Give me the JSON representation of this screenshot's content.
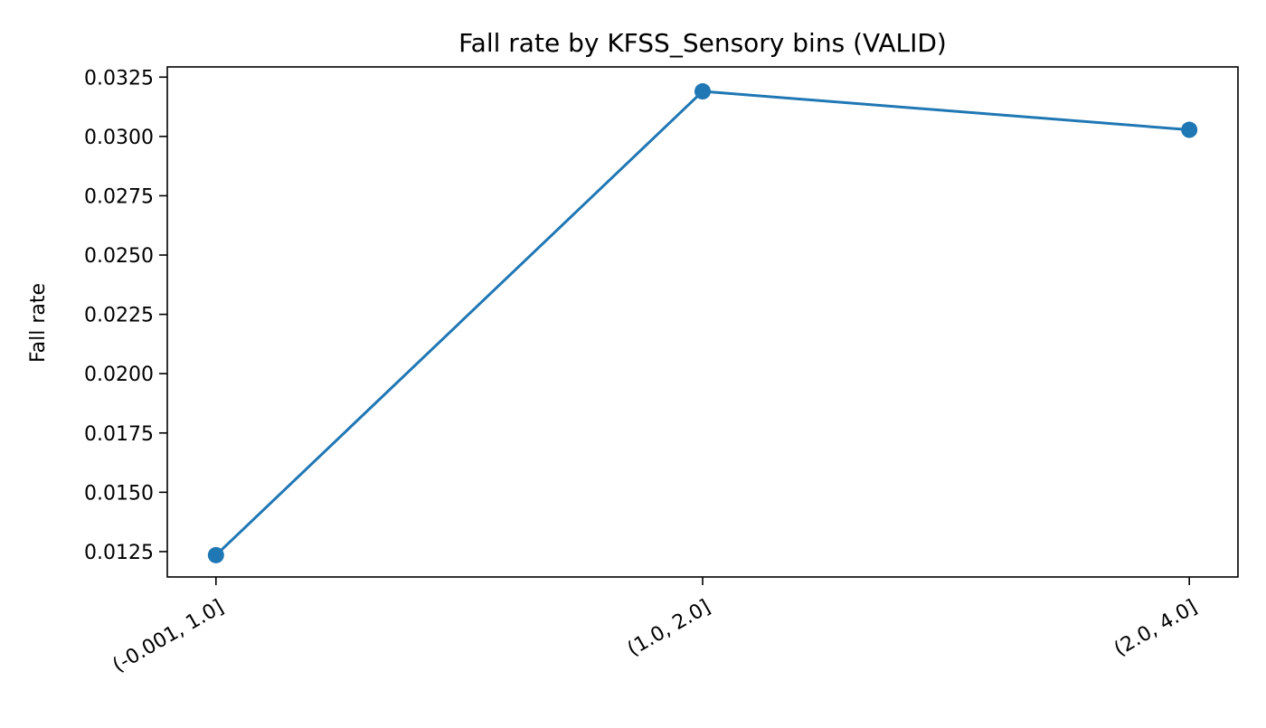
{
  "chart_data": {
    "type": "line",
    "title": "Fall rate by KFSS_Sensory bins (VALID)",
    "xlabel": "",
    "ylabel": "Fall rate",
    "categories": [
      "(-0.001, 1.0]",
      "(1.0, 2.0]",
      "(2.0, 4.0]"
    ],
    "series": [
      {
        "values": [
          0.01235,
          0.0319,
          0.03028
        ]
      }
    ],
    "ylim": [
      0.01143,
      0.03293
    ],
    "yticks": [
      0.0125,
      0.015,
      0.0175,
      0.02,
      0.0225,
      0.025,
      0.0275,
      0.03,
      0.0325
    ],
    "ytick_labels": [
      "0.0125",
      "0.0150",
      "0.0175",
      "0.0200",
      "0.0225",
      "0.0250",
      "0.0275",
      "0.0300",
      "0.0325"
    ],
    "grid": false,
    "marker": "circle",
    "colors": {
      "series": "#1f77b4",
      "axes": "#000000",
      "background": "#ffffff"
    }
  }
}
